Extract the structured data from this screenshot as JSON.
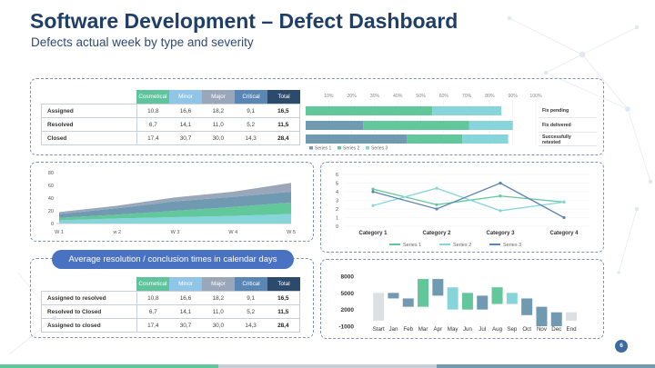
{
  "header": {
    "title": "Software Development – Defect Dashboard",
    "subtitle": "Defects actual week by type and severity"
  },
  "colors": {
    "cosmetical": "#5fc39c",
    "minor": "#8fc5e6",
    "major": "#9aa7bb",
    "critical": "#5a86b3",
    "total": "#2c4a6b",
    "green": "#62c79b",
    "teal": "#6f9ab2",
    "light_teal": "#88d4db"
  },
  "table_top": {
    "columns": [
      "Cosmetical",
      "Minor",
      "Major",
      "Critical",
      "Total"
    ],
    "rows": [
      {
        "label": "Assigned",
        "values": [
          "10,8",
          "16,6",
          "18,2",
          "9,1",
          "16,5"
        ]
      },
      {
        "label": "Resolved",
        "values": [
          "6,7",
          "14,1",
          "11,0",
          "5,2",
          "11,5"
        ]
      },
      {
        "label": "Closed",
        "values": [
          "17,4",
          "30,7",
          "30,0",
          "14,3",
          "28,4"
        ]
      }
    ]
  },
  "table_bottom": {
    "columns": [
      "Cosmetical",
      "Minor",
      "Major",
      "Critical",
      "Total"
    ],
    "rows": [
      {
        "label": "Assigned to resolved",
        "values": [
          "10,8",
          "16,6",
          "18,2",
          "9,1",
          "16,5"
        ]
      },
      {
        "label": "Resolved to Closed",
        "values": [
          "6,7",
          "14,1",
          "11,0",
          "5,2",
          "11,5"
        ]
      },
      {
        "label": "Assigned to closed",
        "values": [
          "17,4",
          "30,7",
          "30,0",
          "14,3",
          "28,4"
        ]
      }
    ]
  },
  "pill_label": "Average resolution / conclusion times in calendar days",
  "page_number": "6",
  "chart_data": [
    {
      "type": "bar",
      "orientation": "horizontal-stacked-percent",
      "categories": [
        "Fix pending",
        "Fix delivered",
        "Successfully retested"
      ],
      "x_ticks": [
        "10%",
        "20%",
        "30%",
        "40%",
        "50%",
        "60%",
        "70%",
        "80%",
        "90%",
        "100%"
      ],
      "xlim": [
        0,
        100
      ],
      "series": [
        {
          "name": "Series 1",
          "values": [
            0,
            25,
            44
          ],
          "color": "#6f9ab2"
        },
        {
          "name": "Series 2",
          "values": [
            55,
            46,
            24
          ],
          "color": "#62c79b"
        },
        {
          "name": "Series 3",
          "values": [
            30,
            19,
            20
          ],
          "color": "#88d4db"
        }
      ],
      "legend": "bottom-left"
    },
    {
      "type": "area",
      "stacked": true,
      "categories": [
        "W 1",
        "w 2",
        "W 3",
        "W 4",
        "W 5"
      ],
      "y_ticks": [
        "0",
        "20",
        "40",
        "60",
        "80"
      ],
      "ylim": [
        0,
        80
      ],
      "series": [
        {
          "values": [
            5,
            8,
            10,
            12,
            15
          ],
          "color": "#88d4db"
        },
        {
          "values": [
            4,
            6,
            10,
            14,
            18
          ],
          "color": "#62c79b"
        },
        {
          "values": [
            6,
            10,
            15,
            16,
            17
          ],
          "color": "#6f9ab2"
        },
        {
          "values": [
            3,
            4,
            6,
            8,
            14
          ],
          "color": "#9aa7bb"
        }
      ]
    },
    {
      "type": "line",
      "categories": [
        "Category 1",
        "Category 2",
        "Category 3",
        "Category 4"
      ],
      "y_ticks": [
        "0",
        "1",
        "2",
        "3",
        "4",
        "5",
        "6"
      ],
      "ylim": [
        0,
        6
      ],
      "series": [
        {
          "name": "Series 1",
          "values": [
            4.3,
            2.5,
            3.5,
            2.8
          ],
          "color": "#62c79b"
        },
        {
          "name": "Series 2",
          "values": [
            2.4,
            4.4,
            1.8,
            2.8
          ],
          "color": "#88d4db"
        },
        {
          "name": "Series 3",
          "values": [
            4.0,
            2.0,
            5.0,
            1.0
          ],
          "color": "#5a86b3"
        }
      ],
      "legend": "bottom"
    },
    {
      "type": "bar",
      "orientation": "waterfall",
      "categories": [
        "Start",
        "Jan",
        "Feb",
        "Mar",
        "Apr",
        "May",
        "Jun",
        "Jul",
        "Aug",
        "Sep",
        "Oct",
        "Nov",
        "Dec",
        "End"
      ],
      "y_ticks": [
        "8000",
        "5000",
        "2000",
        "-1000"
      ],
      "ylim": [
        -1000,
        8000
      ],
      "ranges": [
        [
          0,
          5000
        ],
        [
          4000,
          5000
        ],
        [
          2500,
          4000
        ],
        [
          2500,
          7500
        ],
        [
          4500,
          7500
        ],
        [
          2000,
          6000
        ],
        [
          2000,
          5000
        ],
        [
          2000,
          4500
        ],
        [
          3000,
          6000
        ],
        [
          3000,
          5000
        ],
        [
          1000,
          4000
        ],
        [
          -1000,
          2500
        ],
        [
          -1000,
          1500
        ],
        [
          0,
          1500
        ]
      ],
      "fills": [
        "#dde0e3",
        "#6f9ab2",
        "#6f9ab2",
        "#62c79b",
        "#6f9ab2",
        "#88d4db",
        "#62c79b",
        "#6f9ab2",
        "#62c79b",
        "#88d4db",
        "#6f9ab2",
        "#6f9ab2",
        "#6f9ab2",
        "#dde0e3"
      ]
    }
  ]
}
